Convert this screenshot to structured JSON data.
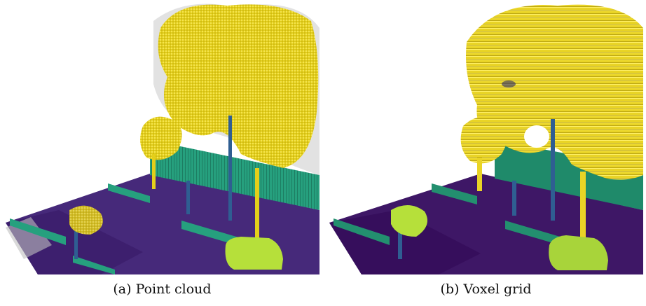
{
  "captions": {
    "a": "(a) Point cloud",
    "b": "(b) Voxel grid"
  },
  "colors": {
    "ground": "#46297a",
    "ground_dark": "#3a1a64",
    "vegetation": "#f0dc28",
    "vegetation_dark": "#c8b414",
    "fence": "#2ba882",
    "fence_dark": "#1f8a6a",
    "pole": "#2f5e92",
    "car": "#b6e03a",
    "shadow": "#cfcfcf"
  }
}
